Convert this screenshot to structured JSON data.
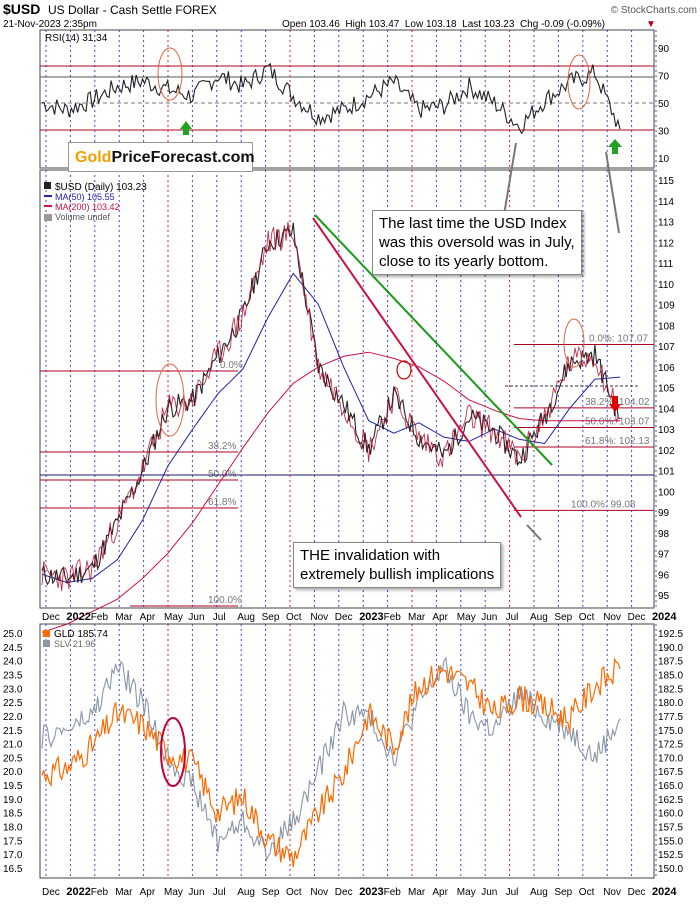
{
  "header": {
    "symbol": "$USD",
    "name": "US Dollar - Cash Settle FOREX",
    "watermark": "© StockCharts.com",
    "date": "21-Nov-2023 2:35pm",
    "quote": "Open 103.46  High 103.47  Low 103.18  Last 103.23  Chg -0.09 (-0.09%)",
    "chg_arrow": "▼"
  },
  "colors": {
    "grid_v": "#2525d6",
    "grid_red": "#d10000",
    "price": "#222222",
    "ma50": "#2222aa",
    "ma200": "#cc1144",
    "green_line": "#1a9a1a",
    "red_line": "#cc1144",
    "fib": "#b00022",
    "gld": "#ff6a00",
    "slv": "#8a95a5"
  },
  "rsi_panel": {
    "legend": "RSI(14) 31.34",
    "levels": [
      "90",
      "70",
      "50",
      "30",
      "10"
    ],
    "upper_line": 70,
    "lower_line": 30
  },
  "logo": {
    "word1": "Gold",
    "word2": "PriceForecast.com"
  },
  "price_panel": {
    "legend_price": "$USD (Daily) 103.23",
    "legend_ma50": "MA(50) 105.55",
    "legend_ma200": "MA(200) 103.42",
    "legend_volume": "Volume undef",
    "y_ticks": [
      "115",
      "114",
      "113",
      "112",
      "111",
      "110",
      "109",
      "108",
      "107",
      "106",
      "105",
      "104",
      "103",
      "102",
      "101",
      "100",
      "99",
      "98",
      "97",
      "96",
      "95"
    ],
    "fib_left": [
      "38.2%",
      "50.0%",
      "61.8%",
      "100.0%",
      "0.0%"
    ],
    "fib_right": [
      "0.0%: 107.07",
      "38.2%: 104.02",
      "50.0%: 103.07",
      "61.8%: 102.13",
      "100.0%: 99.08"
    ],
    "callout_1": [
      "The last time the USD Index",
      "was this oversold was in July,",
      "close to its yearly bottom."
    ],
    "callout_2": [
      "THE invalidation with",
      "extremely bullish implications"
    ]
  },
  "x_axis": {
    "labels": [
      "Dec",
      "2022",
      "Feb",
      "Mar",
      "Apr",
      "May",
      "Jun",
      "Jul",
      "Aug",
      "Sep",
      "Oct",
      "Nov",
      "Dec",
      "2023",
      "Feb",
      "Mar",
      "Apr",
      "May",
      "Jun",
      "Jul",
      "Aug",
      "Sep",
      "Oct",
      "Nov",
      "Dec",
      "2024"
    ]
  },
  "metals_panel": {
    "legend_gld": "GLD 185.74",
    "legend_slv": "SLV 21.96",
    "left_ticks": [
      "25.0",
      "24.5",
      "24.0",
      "23.5",
      "23.0",
      "22.5",
      "22.0",
      "21.5",
      "21.0",
      "20.5",
      "20.0",
      "19.5",
      "19.0",
      "18.5",
      "18.0",
      "17.5",
      "17.0",
      "16.5"
    ],
    "right_ticks": [
      "192.5",
      "190.0",
      "187.5",
      "185.0",
      "182.5",
      "180.0",
      "177.5",
      "175.0",
      "172.5",
      "170.0",
      "167.5",
      "165.0",
      "162.5",
      "160.0",
      "157.5",
      "155.0",
      "152.5",
      "150.0"
    ]
  },
  "chart_data": {
    "type": "line",
    "title": "$USD US Dollar - Cash Settle FOREX",
    "x": [
      "2021-12",
      "2022-01",
      "2022-02",
      "2022-03",
      "2022-04",
      "2022-05",
      "2022-06",
      "2022-07",
      "2022-08",
      "2022-09",
      "2022-10",
      "2022-11",
      "2022-12",
      "2023-01",
      "2023-02",
      "2023-03",
      "2023-04",
      "2023-05",
      "2023-06",
      "2023-07",
      "2023-08",
      "2023-09",
      "2023-10",
      "2023-11"
    ],
    "series": [
      {
        "name": "$USD (Daily)",
        "values": [
          96.0,
          95.8,
          96.3,
          98.5,
          101.0,
          104.0,
          104.4,
          106.5,
          108.5,
          112.0,
          112.5,
          106.0,
          104.2,
          102.0,
          104.6,
          102.6,
          101.7,
          103.6,
          102.9,
          101.5,
          103.6,
          106.2,
          106.6,
          103.5
        ]
      },
      {
        "name": "MA(50)",
        "values": [
          96.0,
          95.6,
          95.8,
          96.7,
          98.6,
          101.2,
          103.0,
          104.7,
          105.9,
          108.4,
          110.5,
          109.0,
          106.0,
          103.4,
          102.8,
          103.3,
          102.6,
          102.4,
          103.0,
          102.5,
          102.3,
          104.0,
          105.4,
          105.5
        ]
      },
      {
        "name": "MA(200)",
        "values": [
          93.2,
          93.6,
          94.2,
          94.8,
          95.8,
          97.0,
          98.5,
          100.3,
          102.1,
          103.8,
          105.2,
          106.0,
          106.5,
          106.7,
          106.4,
          106.0,
          105.3,
          104.4,
          103.9,
          103.5,
          103.4,
          103.4,
          103.4,
          103.4
        ]
      },
      {
        "name": "RSI(14)",
        "values": [
          50,
          45,
          52,
          62,
          66,
          60,
          55,
          70,
          62,
          75,
          55,
          40,
          45,
          55,
          65,
          45,
          48,
          62,
          50,
          33,
          52,
          65,
          72,
          31
        ]
      },
      {
        "name": "GLD",
        "values": [
          167,
          168,
          172,
          178,
          176,
          171,
          169,
          160,
          163,
          155,
          152,
          160,
          167,
          178,
          172,
          183,
          186,
          183,
          178,
          181,
          179,
          177,
          183,
          186
        ]
      },
      {
        "name": "SLV",
        "values": [
          21.2,
          21.5,
          22.0,
          23.8,
          22.5,
          20.5,
          19.5,
          17.5,
          18.2,
          17.0,
          18.2,
          20.0,
          22.1,
          22.0,
          20.5,
          22.5,
          23.8,
          22.0,
          21.5,
          22.8,
          22.0,
          21.5,
          20.5,
          21.9
        ]
      }
    ],
    "ylim_price": [
      94.5,
      115.5
    ],
    "rsi_levels": [
      90,
      70,
      50,
      30,
      10
    ],
    "ylim_gld": [
      150,
      193
    ],
    "ylim_slv": [
      16.2,
      25.0
    ],
    "fibonacci": {
      "0.0%": 107.07,
      "38.2%": 104.02,
      "50.0%": 103.07,
      "61.8%": 102.13,
      "100.0%": 99.08
    },
    "grid": true
  }
}
